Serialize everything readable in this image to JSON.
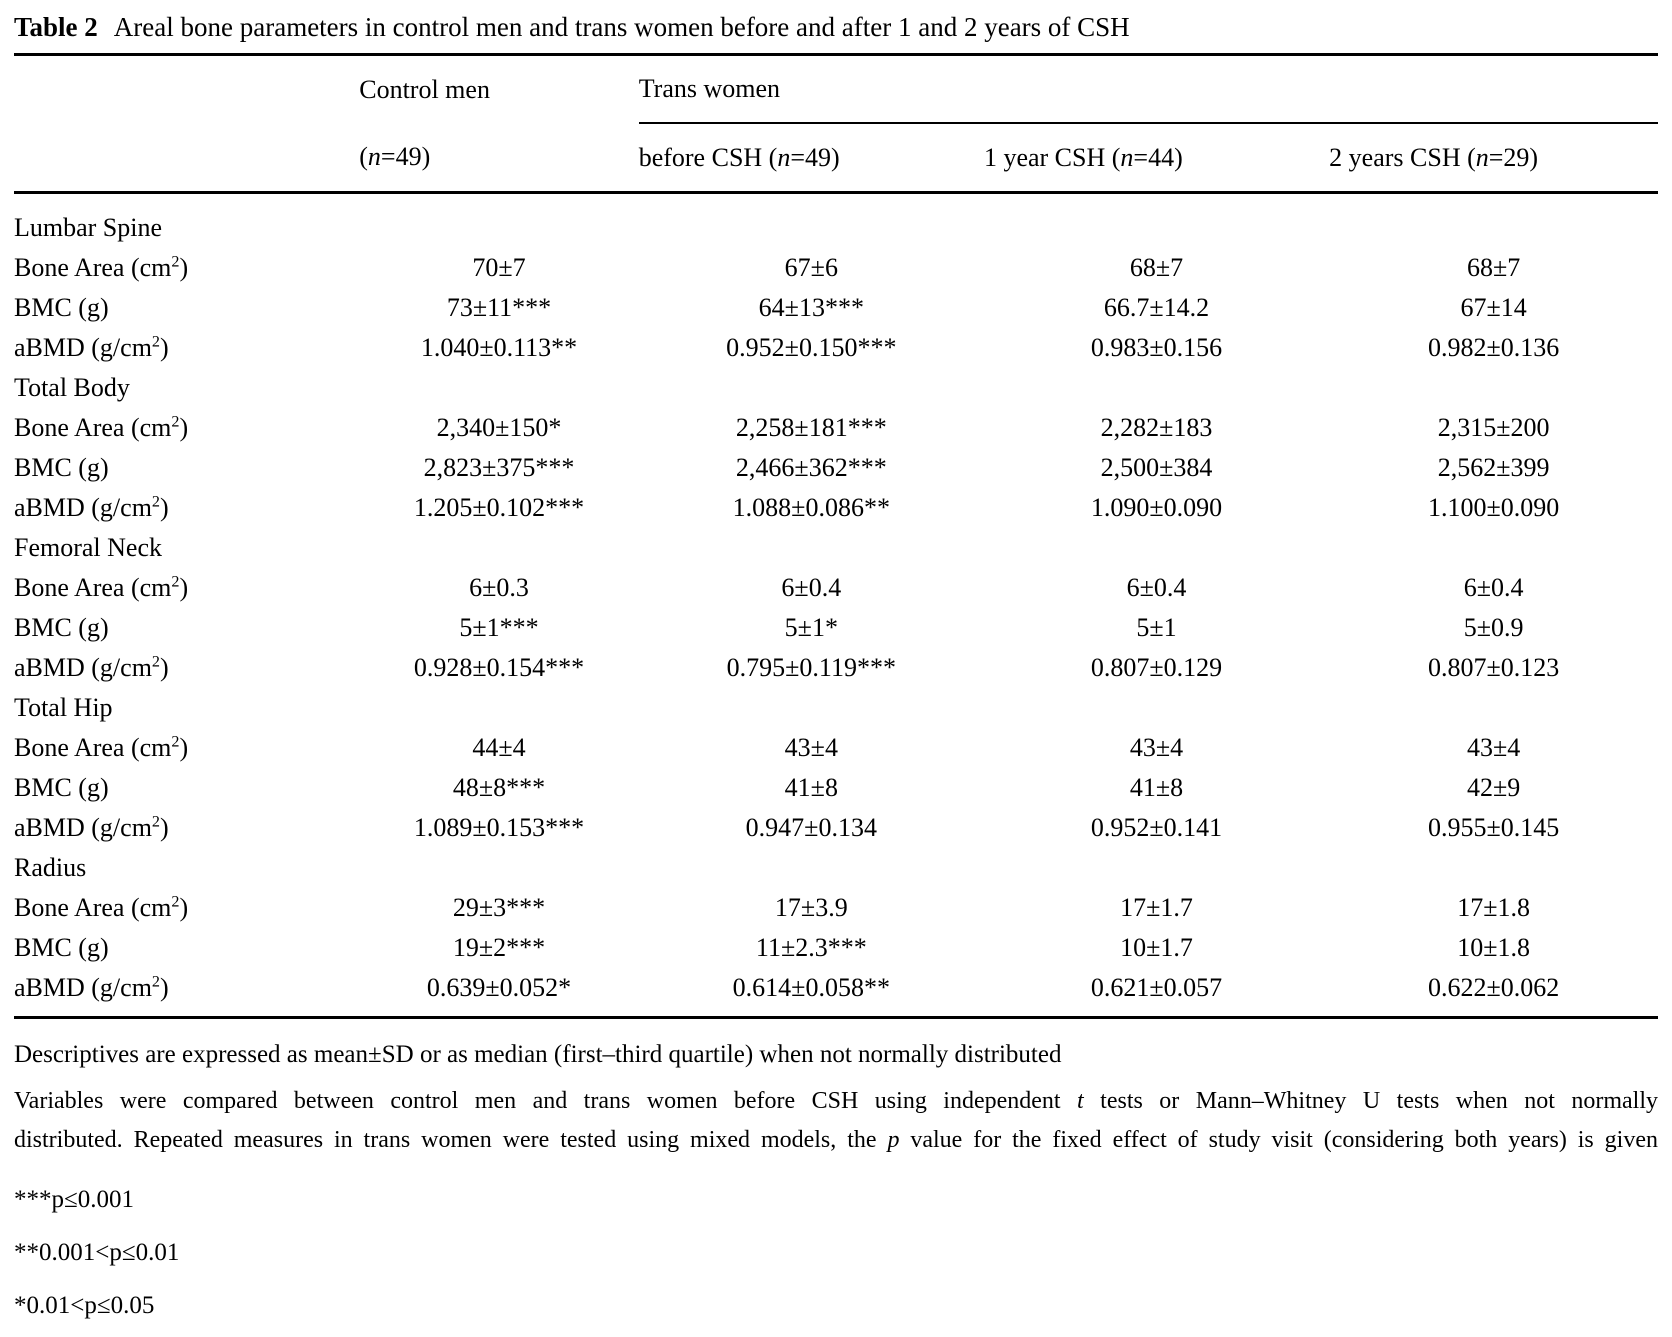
{
  "title": {
    "tag": "Table 2",
    "text": "Areal bone parameters in control men and trans women before and after 1 and 2 years of CSH"
  },
  "table": {
    "group_headers": {
      "control": "Control men",
      "trans": "Trans women"
    },
    "col_headers": [
      {
        "segments": [
          {
            "t": "("
          },
          {
            "t": "n",
            "i": true
          },
          {
            "t": "=49)"
          }
        ]
      },
      {
        "segments": [
          {
            "t": "before CSH ("
          },
          {
            "t": "n",
            "i": true
          },
          {
            "t": "=49)"
          }
        ]
      },
      {
        "segments": [
          {
            "t": "1 year CSH ("
          },
          {
            "t": "n",
            "i": true
          },
          {
            "t": "=44)"
          }
        ]
      },
      {
        "segments": [
          {
            "t": "2 years CSH ("
          },
          {
            "t": "n",
            "i": true
          },
          {
            "t": "=29)"
          }
        ]
      }
    ],
    "sections": [
      {
        "name": "Lumbar Spine",
        "rows": [
          {
            "label": [
              {
                "t": "Bone Area (cm"
              },
              {
                "t": "2",
                "sup": true
              },
              {
                "t": ")"
              }
            ],
            "values": [
              "70±7",
              "67±6",
              "68±7",
              "68±7"
            ]
          },
          {
            "label": [
              {
                "t": "BMC (g)"
              }
            ],
            "values": [
              "73±11***",
              "64±13***",
              "66.7±14.2",
              "67±14"
            ]
          },
          {
            "label": [
              {
                "t": "aBMD (g/cm"
              },
              {
                "t": "2",
                "sup": true
              },
              {
                "t": ")"
              }
            ],
            "values": [
              "1.040±0.113**",
              "0.952±0.150***",
              "0.983±0.156",
              "0.982±0.136"
            ]
          }
        ]
      },
      {
        "name": "Total Body",
        "rows": [
          {
            "label": [
              {
                "t": "Bone Area (cm"
              },
              {
                "t": "2",
                "sup": true
              },
              {
                "t": ")"
              }
            ],
            "values": [
              "2,340±150*",
              "2,258±181***",
              "2,282±183",
              "2,315±200"
            ]
          },
          {
            "label": [
              {
                "t": "BMC (g)"
              }
            ],
            "values": [
              "2,823±375***",
              "2,466±362***",
              "2,500±384",
              "2,562±399"
            ]
          },
          {
            "label": [
              {
                "t": "aBMD (g/cm"
              },
              {
                "t": "2",
                "sup": true
              },
              {
                "t": ")"
              }
            ],
            "values": [
              "1.205±0.102***",
              "1.088±0.086**",
              "1.090±0.090",
              "1.100±0.090"
            ]
          }
        ]
      },
      {
        "name": "Femoral Neck",
        "rows": [
          {
            "label": [
              {
                "t": "Bone Area (cm"
              },
              {
                "t": "2",
                "sup": true
              },
              {
                "t": ")"
              }
            ],
            "values": [
              "6±0.3",
              "6±0.4",
              "6±0.4",
              "6±0.4"
            ]
          },
          {
            "label": [
              {
                "t": "BMC (g)"
              }
            ],
            "values": [
              "5±1***",
              "5±1*",
              "5±1",
              "5±0.9"
            ]
          },
          {
            "label": [
              {
                "t": "aBMD (g/cm"
              },
              {
                "t": "2",
                "sup": true
              },
              {
                "t": ")"
              }
            ],
            "values": [
              "0.928±0.154***",
              "0.795±0.119***",
              "0.807±0.129",
              "0.807±0.123"
            ]
          }
        ]
      },
      {
        "name": "Total Hip",
        "rows": [
          {
            "label": [
              {
                "t": "Bone Area (cm"
              },
              {
                "t": "2",
                "sup": true
              },
              {
                "t": ")"
              }
            ],
            "values": [
              "44±4",
              "43±4",
              "43±4",
              "43±4"
            ]
          },
          {
            "label": [
              {
                "t": "BMC (g)"
              }
            ],
            "values": [
              "48±8***",
              "41±8",
              "41±8",
              "42±9"
            ]
          },
          {
            "label": [
              {
                "t": "aBMD (g/cm"
              },
              {
                "t": "2",
                "sup": true
              },
              {
                "t": ")"
              }
            ],
            "values": [
              "1.089±0.153***",
              "0.947±0.134",
              "0.952±0.141",
              "0.955±0.145"
            ]
          }
        ]
      },
      {
        "name": "Radius",
        "rows": [
          {
            "label": [
              {
                "t": "Bone Area (cm"
              },
              {
                "t": "2",
                "sup": true
              },
              {
                "t": ")"
              }
            ],
            "values": [
              "29±3***",
              "17±3.9",
              "17±1.7",
              "17±1.8"
            ]
          },
          {
            "label": [
              {
                "t": "BMC (g)"
              }
            ],
            "values": [
              "19±2***",
              "11±2.3***",
              "10±1.7",
              "10±1.8"
            ]
          },
          {
            "label": [
              {
                "t": "aBMD (g/cm"
              },
              {
                "t": "2",
                "sup": true
              },
              {
                "t": ")"
              }
            ],
            "values": [
              "0.639±0.052*",
              "0.614±0.058**",
              "0.621±0.057",
              "0.622±0.062"
            ]
          }
        ]
      }
    ]
  },
  "footnotes": {
    "descriptives": "Descriptives are expressed as mean±SD or as median (first–third quartile) when not normally distributed",
    "methods_lines": [
      {
        "segments": [
          {
            "t": "Variables were compared between control men and trans women before CSH using independent "
          },
          {
            "t": "t",
            "i": true
          },
          {
            "t": " tests or Mann–Whitney U tests when not normally"
          }
        ]
      },
      {
        "segments": [
          {
            "t": "distributed. Repeated measures in trans women were tested using mixed models, the "
          },
          {
            "t": "p",
            "i": true
          },
          {
            "t": " value for the fixed effect of study visit (considering both years) is given"
          }
        ]
      }
    ],
    "significance": [
      "***p≤0.001",
      "**0.001<p≤0.01",
      "*0.01<p≤0.05"
    ]
  }
}
